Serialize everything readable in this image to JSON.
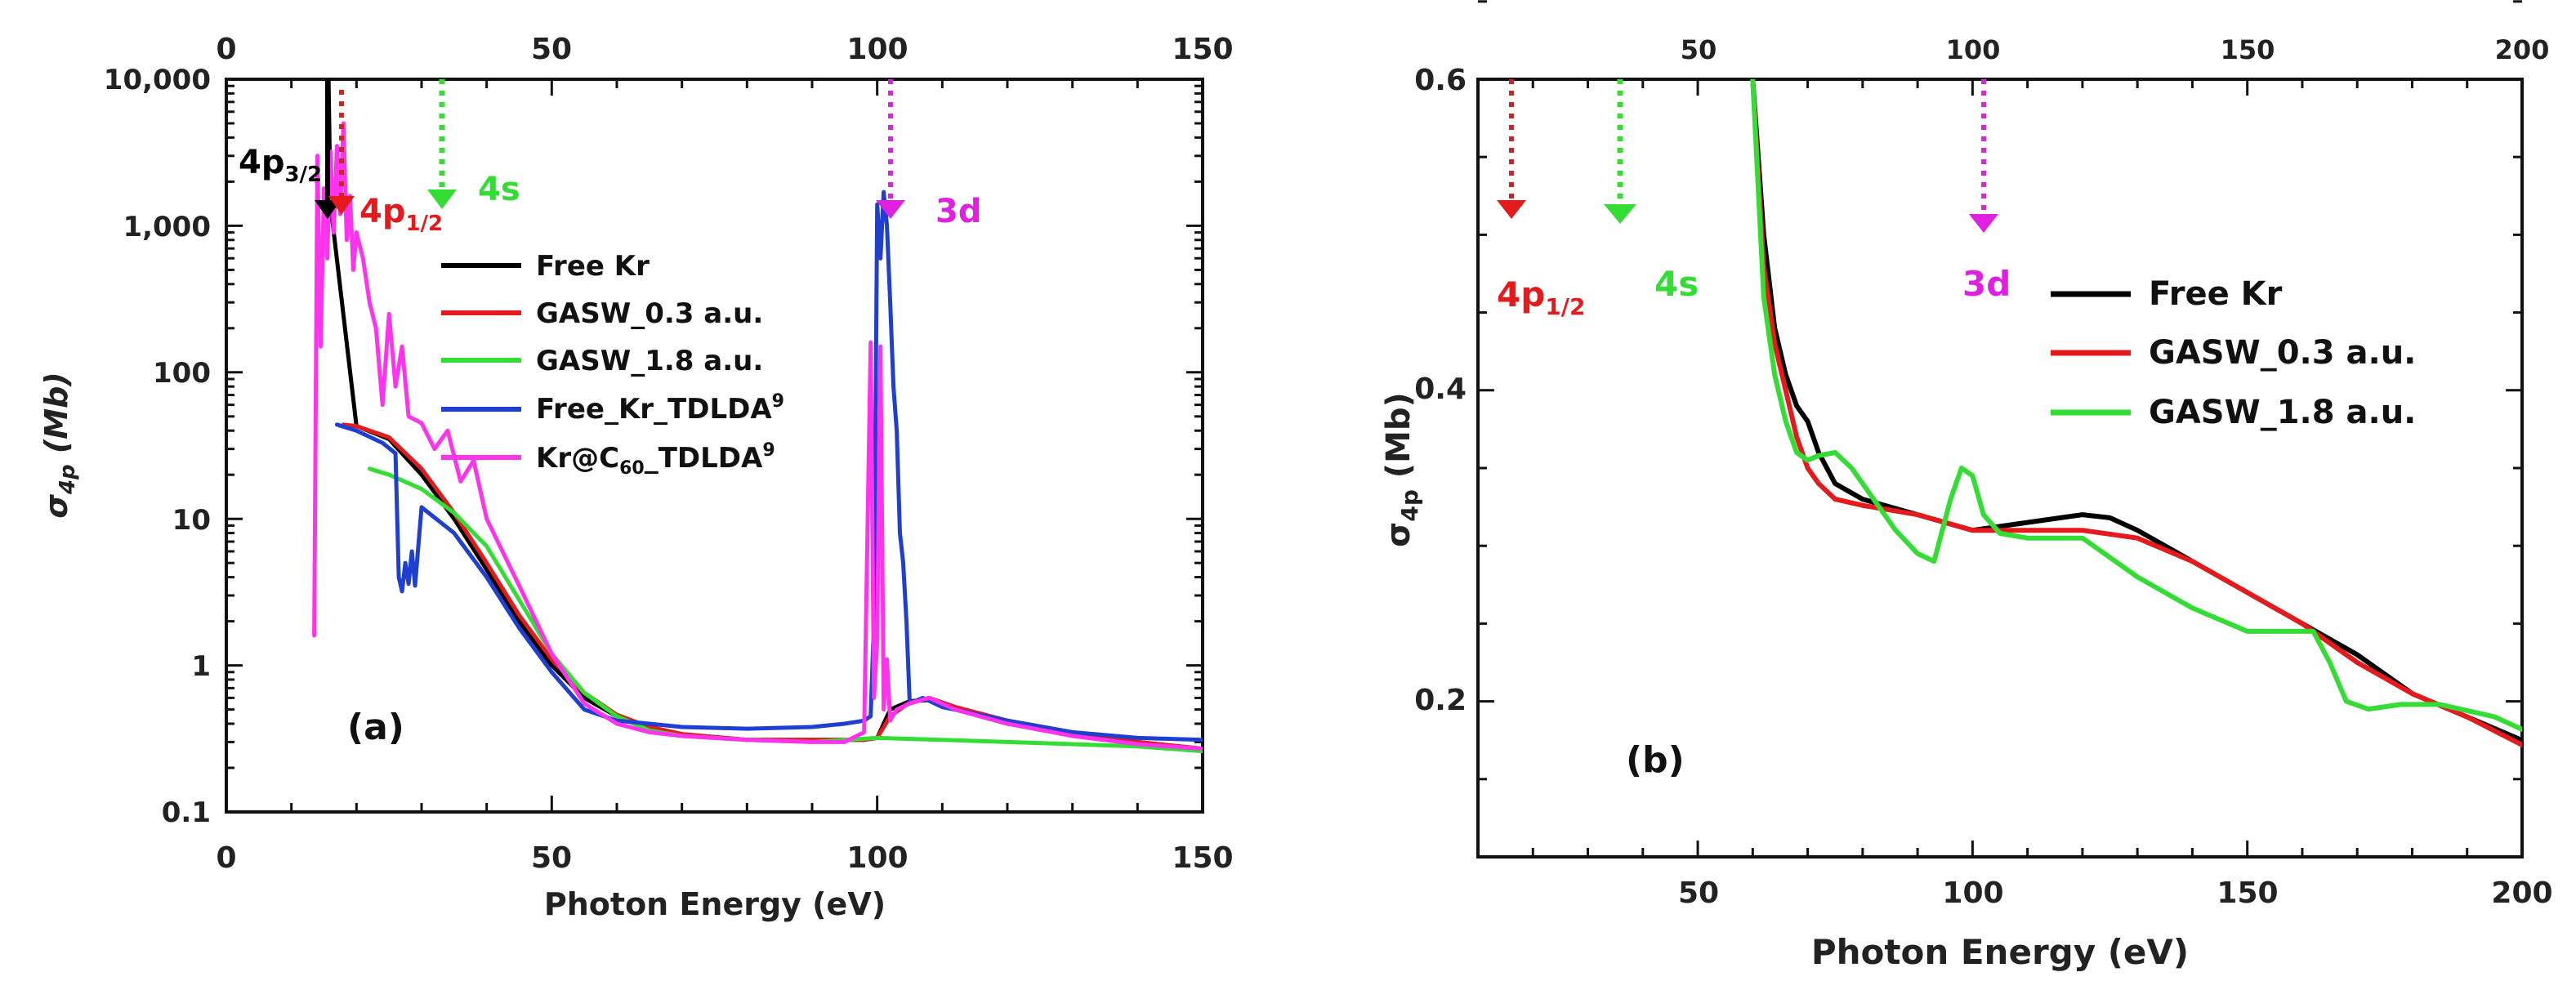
{
  "chart_data": [
    {
      "type": "line",
      "panel_label": "(a)",
      "xlabel": "Photon Energy (eV)",
      "ylabel": "σ",
      "ylabel_sub": "4p",
      "ylabel_unit": " (Mb)",
      "xlim": [
        0,
        150
      ],
      "ylim": [
        0.1,
        10000
      ],
      "yscale": "log",
      "xticks": [
        "0",
        "50",
        "100",
        "150"
      ],
      "xticks_top": [
        "0",
        "50",
        "100",
        "150"
      ],
      "yticks": [
        "0.1",
        "1",
        "10",
        "100",
        "1,000",
        "10,000"
      ],
      "legend_position": "center-right",
      "legend_labels": [
        "Free Kr",
        "GASW_0.3 a.u.",
        "GASW_1.8 a.u.",
        "Free_Kr_TDLDA",
        "Kr@C",
        "_TDLDA"
      ],
      "legend_sub": "60",
      "legend_sup": "9",
      "annotations": [
        {
          "text": "4p",
          "sub": "3/2",
          "x": 16,
          "color": "#000000"
        },
        {
          "text": "4p",
          "sub": "1/2",
          "x": 18,
          "color": "#e41a1c"
        },
        {
          "text": "4s",
          "x": 33,
          "color": "#33dd33"
        },
        {
          "text": "3d",
          "x": 102,
          "color": "#e020e0"
        }
      ],
      "series": [
        {
          "name": "Free Kr",
          "color": "#000000",
          "x": [
            15.7,
            16,
            20,
            25,
            30,
            35,
            40,
            45,
            50,
            55,
            60,
            65,
            70,
            80,
            90,
            95,
            98,
            100,
            102,
            105,
            108,
            112,
            120,
            130,
            140,
            150
          ],
          "y": [
            10000,
            1400,
            43,
            35,
            20,
            10,
            4.5,
            2,
            1.0,
            0.6,
            0.45,
            0.38,
            0.34,
            0.31,
            0.31,
            0.31,
            0.31,
            0.32,
            0.5,
            0.57,
            0.58,
            0.5,
            0.4,
            0.34,
            0.3,
            0.27
          ]
        },
        {
          "name": "GASW_0.3 a.u.",
          "color": "#e41a1c",
          "x": [
            18,
            20,
            25,
            30,
            35,
            40,
            45,
            50,
            55,
            60,
            65,
            70,
            80,
            90,
            95,
            98,
            100,
            102,
            105,
            108,
            112,
            120,
            130,
            140,
            150
          ],
          "y": [
            44,
            43,
            36,
            22,
            11,
            5,
            2.2,
            1.1,
            0.65,
            0.46,
            0.38,
            0.34,
            0.31,
            0.31,
            0.31,
            0.31,
            0.32,
            0.45,
            0.56,
            0.6,
            0.52,
            0.42,
            0.35,
            0.3,
            0.27
          ]
        },
        {
          "name": "GASW_1.8 a.u.",
          "color": "#33dd33",
          "x": [
            22,
            25,
            30,
            35,
            40,
            45,
            50,
            55,
            60,
            65,
            70,
            80,
            90,
            100,
            110,
            120,
            130,
            140,
            150
          ],
          "y": [
            22,
            20,
            16,
            11,
            6.5,
            2.8,
            1.2,
            0.65,
            0.45,
            0.36,
            0.33,
            0.31,
            0.3,
            0.32,
            0.31,
            0.3,
            0.29,
            0.28,
            0.26
          ]
        },
        {
          "name": "Free_Kr_TDLDA",
          "color": "#1f3fd0",
          "x": [
            17,
            20,
            24,
            26,
            26.5,
            27,
            27.5,
            28,
            28.5,
            29,
            30,
            35,
            40,
            45,
            50,
            55,
            60,
            65,
            70,
            80,
            90,
            95,
            98,
            99,
            99.5,
            100,
            100.5,
            101,
            101.5,
            102,
            102.5,
            103,
            103.5,
            104,
            104.5,
            105,
            107,
            110,
            120,
            130,
            140,
            150
          ],
          "y": [
            44,
            40,
            33,
            28,
            4,
            3.2,
            5,
            3.6,
            6,
            3.5,
            12,
            8,
            4,
            1.8,
            0.9,
            0.5,
            0.42,
            0.4,
            0.38,
            0.37,
            0.38,
            0.4,
            0.42,
            0.45,
            2,
            1400,
            600,
            1700,
            1000,
            300,
            80,
            40,
            8,
            5,
            2,
            0.55,
            0.6,
            0.52,
            0.42,
            0.35,
            0.32,
            0.31
          ]
        },
        {
          "name": "Kr@C60_TDLDA",
          "color": "#ff33ee",
          "x": [
            13.5,
            14,
            14.5,
            15,
            15.5,
            16,
            16.5,
            17,
            17.5,
            18,
            18.5,
            19,
            19.5,
            20,
            21,
            22,
            23,
            24,
            25,
            26,
            27,
            28,
            30,
            32,
            34,
            36,
            38,
            40,
            45,
            50,
            55,
            60,
            65,
            70,
            80,
            90,
            95,
            98,
            99,
            99.5,
            100,
            100.5,
            101,
            101.5,
            102,
            103,
            105,
            108,
            112,
            120,
            130,
            140,
            150
          ],
          "y": [
            1.6,
            3000,
            150,
            1800,
            600,
            3200,
            900,
            3500,
            1200,
            5000,
            800,
            1600,
            500,
            900,
            600,
            300,
            200,
            60,
            250,
            80,
            150,
            50,
            45,
            30,
            40,
            18,
            25,
            10,
            3.5,
            1.2,
            0.55,
            0.4,
            0.35,
            0.33,
            0.31,
            0.3,
            0.3,
            0.35,
            160,
            0.6,
            1.5,
            150,
            0.5,
            1.1,
            0.42,
            0.5,
            0.55,
            0.6,
            0.5,
            0.4,
            0.33,
            0.29,
            0.27
          ]
        }
      ]
    },
    {
      "type": "line",
      "panel_label": "(b)",
      "xlabel": "Photon Energy (eV)",
      "ylabel": "σ",
      "ylabel_sub": "4p",
      "ylabel_unit": " (Mb)",
      "xlim": [
        10,
        200
      ],
      "ylim": [
        0.1,
        0.6
      ],
      "xticks": [
        "50",
        "100",
        "150",
        "200"
      ],
      "xticks_top": [
        "50",
        "100",
        "150",
        "200"
      ],
      "yticks": [
        "0.2",
        "0.4",
        "0.6"
      ],
      "legend_position": "top-right",
      "legend_labels": [
        "Free Kr",
        "GASW_0.3 a.u.",
        "GASW_1.8 a.u."
      ],
      "annotations": [
        {
          "text": "4p",
          "sub": "1/2",
          "x": 16,
          "color": "#e41a1c"
        },
        {
          "text": "4s",
          "x": 33,
          "color": "#33dd33"
        },
        {
          "text": "3d",
          "x": 102,
          "color": "#e020e0"
        }
      ],
      "series": [
        {
          "name": "Free Kr",
          "color": "#000000",
          "x": [
            60,
            62,
            64,
            66,
            68,
            70,
            72,
            75,
            80,
            90,
            100,
            110,
            120,
            125,
            130,
            140,
            150,
            160,
            170,
            180,
            190,
            200
          ],
          "y": [
            0.6,
            0.5,
            0.44,
            0.41,
            0.39,
            0.38,
            0.36,
            0.34,
            0.33,
            0.32,
            0.31,
            0.315,
            0.32,
            0.318,
            0.31,
            0.29,
            0.27,
            0.25,
            0.23,
            0.205,
            0.19,
            0.175
          ]
        },
        {
          "name": "GASW_0.3 a.u.",
          "color": "#e41a1c",
          "x": [
            60,
            62,
            64,
            66,
            68,
            70,
            72,
            75,
            80,
            90,
            100,
            110,
            120,
            130,
            140,
            150,
            160,
            170,
            180,
            190,
            200
          ],
          "y": [
            0.6,
            0.48,
            0.43,
            0.4,
            0.37,
            0.35,
            0.34,
            0.33,
            0.326,
            0.32,
            0.31,
            0.31,
            0.31,
            0.305,
            0.29,
            0.27,
            0.25,
            0.225,
            0.205,
            0.19,
            0.172
          ]
        },
        {
          "name": "GASW_1.8 a.u.",
          "color": "#33dd33",
          "x": [
            60,
            62,
            64,
            66,
            68,
            70,
            72,
            75,
            78,
            82,
            86,
            90,
            93,
            96,
            98,
            100,
            102,
            105,
            110,
            120,
            130,
            140,
            150,
            158,
            162,
            165,
            168,
            172,
            178,
            185,
            195,
            200
          ],
          "y": [
            0.6,
            0.46,
            0.41,
            0.38,
            0.36,
            0.355,
            0.358,
            0.36,
            0.35,
            0.33,
            0.31,
            0.295,
            0.29,
            0.33,
            0.35,
            0.345,
            0.32,
            0.308,
            0.305,
            0.305,
            0.28,
            0.26,
            0.245,
            0.245,
            0.245,
            0.225,
            0.2,
            0.195,
            0.198,
            0.198,
            0.19,
            0.182
          ]
        }
      ]
    }
  ]
}
